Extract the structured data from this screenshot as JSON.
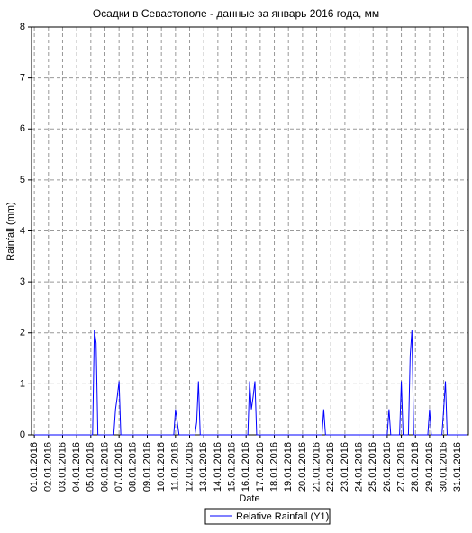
{
  "chart_data": {
    "type": "line",
    "title": "Осадки в Севастополе - данные за январь 2016 года, мм",
    "x_label": "Date",
    "y_label": "Rainfall (mm)",
    "xlim": [
      0.8,
      31.75
    ],
    "ylim": [
      0,
      8
    ],
    "yticks": [
      0,
      1,
      2,
      3,
      4,
      5,
      6,
      7,
      8
    ],
    "xticks": [
      {
        "value": 1,
        "label": "01.01.2016"
      },
      {
        "value": 2,
        "label": "02.01.2016"
      },
      {
        "value": 3,
        "label": "03.01.2016"
      },
      {
        "value": 4,
        "label": "04.01.2016"
      },
      {
        "value": 5,
        "label": "05.01.2016"
      },
      {
        "value": 6,
        "label": "06.01.2016"
      },
      {
        "value": 7,
        "label": "07.01.2016"
      },
      {
        "value": 8,
        "label": "08.01.2016"
      },
      {
        "value": 9,
        "label": "09.01.2016"
      },
      {
        "value": 10,
        "label": "10.01.2016"
      },
      {
        "value": 11,
        "label": "11.01.2016"
      },
      {
        "value": 12,
        "label": "12.01.2016"
      },
      {
        "value": 13,
        "label": "13.01.2016"
      },
      {
        "value": 14,
        "label": "14.01.2016"
      },
      {
        "value": 15,
        "label": "15.01.2016"
      },
      {
        "value": 16,
        "label": "16.01.2016"
      },
      {
        "value": 17,
        "label": "17.01.2016"
      },
      {
        "value": 18,
        "label": "18.01.2016"
      },
      {
        "value": 19,
        "label": "19.01.2016"
      },
      {
        "value": 20,
        "label": "20.01.2016"
      },
      {
        "value": 21,
        "label": "21.01.2016"
      },
      {
        "value": 22,
        "label": "22.01.2016"
      },
      {
        "value": 23,
        "label": "23.01.2016"
      },
      {
        "value": 24,
        "label": "24.01.2016"
      },
      {
        "value": 25,
        "label": "25.01.2016"
      },
      {
        "value": 26,
        "label": "26.01.2016"
      },
      {
        "value": 27,
        "label": "27.01.2016"
      },
      {
        "value": 28,
        "label": "28.01.2016"
      },
      {
        "value": 29,
        "label": "29.01.2016"
      },
      {
        "value": 30,
        "label": "30.01.2016"
      },
      {
        "value": 31,
        "label": "31.01.2016"
      }
    ],
    "grid": true,
    "legend": "bottom",
    "x": [
      1,
      5.125,
      5.25,
      5.375,
      5.5,
      6.625,
      6.75,
      6.875,
      7.0,
      7.125,
      10.875,
      11.0,
      11.125,
      11.25,
      12.375,
      12.5,
      12.625,
      12.75,
      16.125,
      16.25,
      16.375,
      16.5,
      16.625,
      16.75,
      21.375,
      21.5,
      21.625,
      26.0,
      26.125,
      26.25,
      26.875,
      27.0,
      27.125,
      27.5,
      27.625,
      27.75,
      27.875,
      28.875,
      29.0,
      29.125,
      29.875,
      30.0,
      30.125,
      30.25,
      31.625
    ],
    "series": [
      {
        "name": "Relative Rainfall (Y1)",
        "color": "#0000ff",
        "values": [
          0,
          0,
          2.05,
          1.8,
          0,
          0,
          0.5,
          0.75,
          1.05,
          0,
          0,
          0.5,
          0.25,
          0,
          0,
          0.25,
          1.05,
          0,
          0,
          1.05,
          0.5,
          0.75,
          1.05,
          0,
          0,
          0.5,
          0,
          0,
          0.5,
          0,
          0,
          1.05,
          0,
          0,
          1.55,
          2.05,
          0,
          0,
          0.5,
          0,
          0,
          0.5,
          1.05,
          0,
          0
        ]
      }
    ]
  }
}
